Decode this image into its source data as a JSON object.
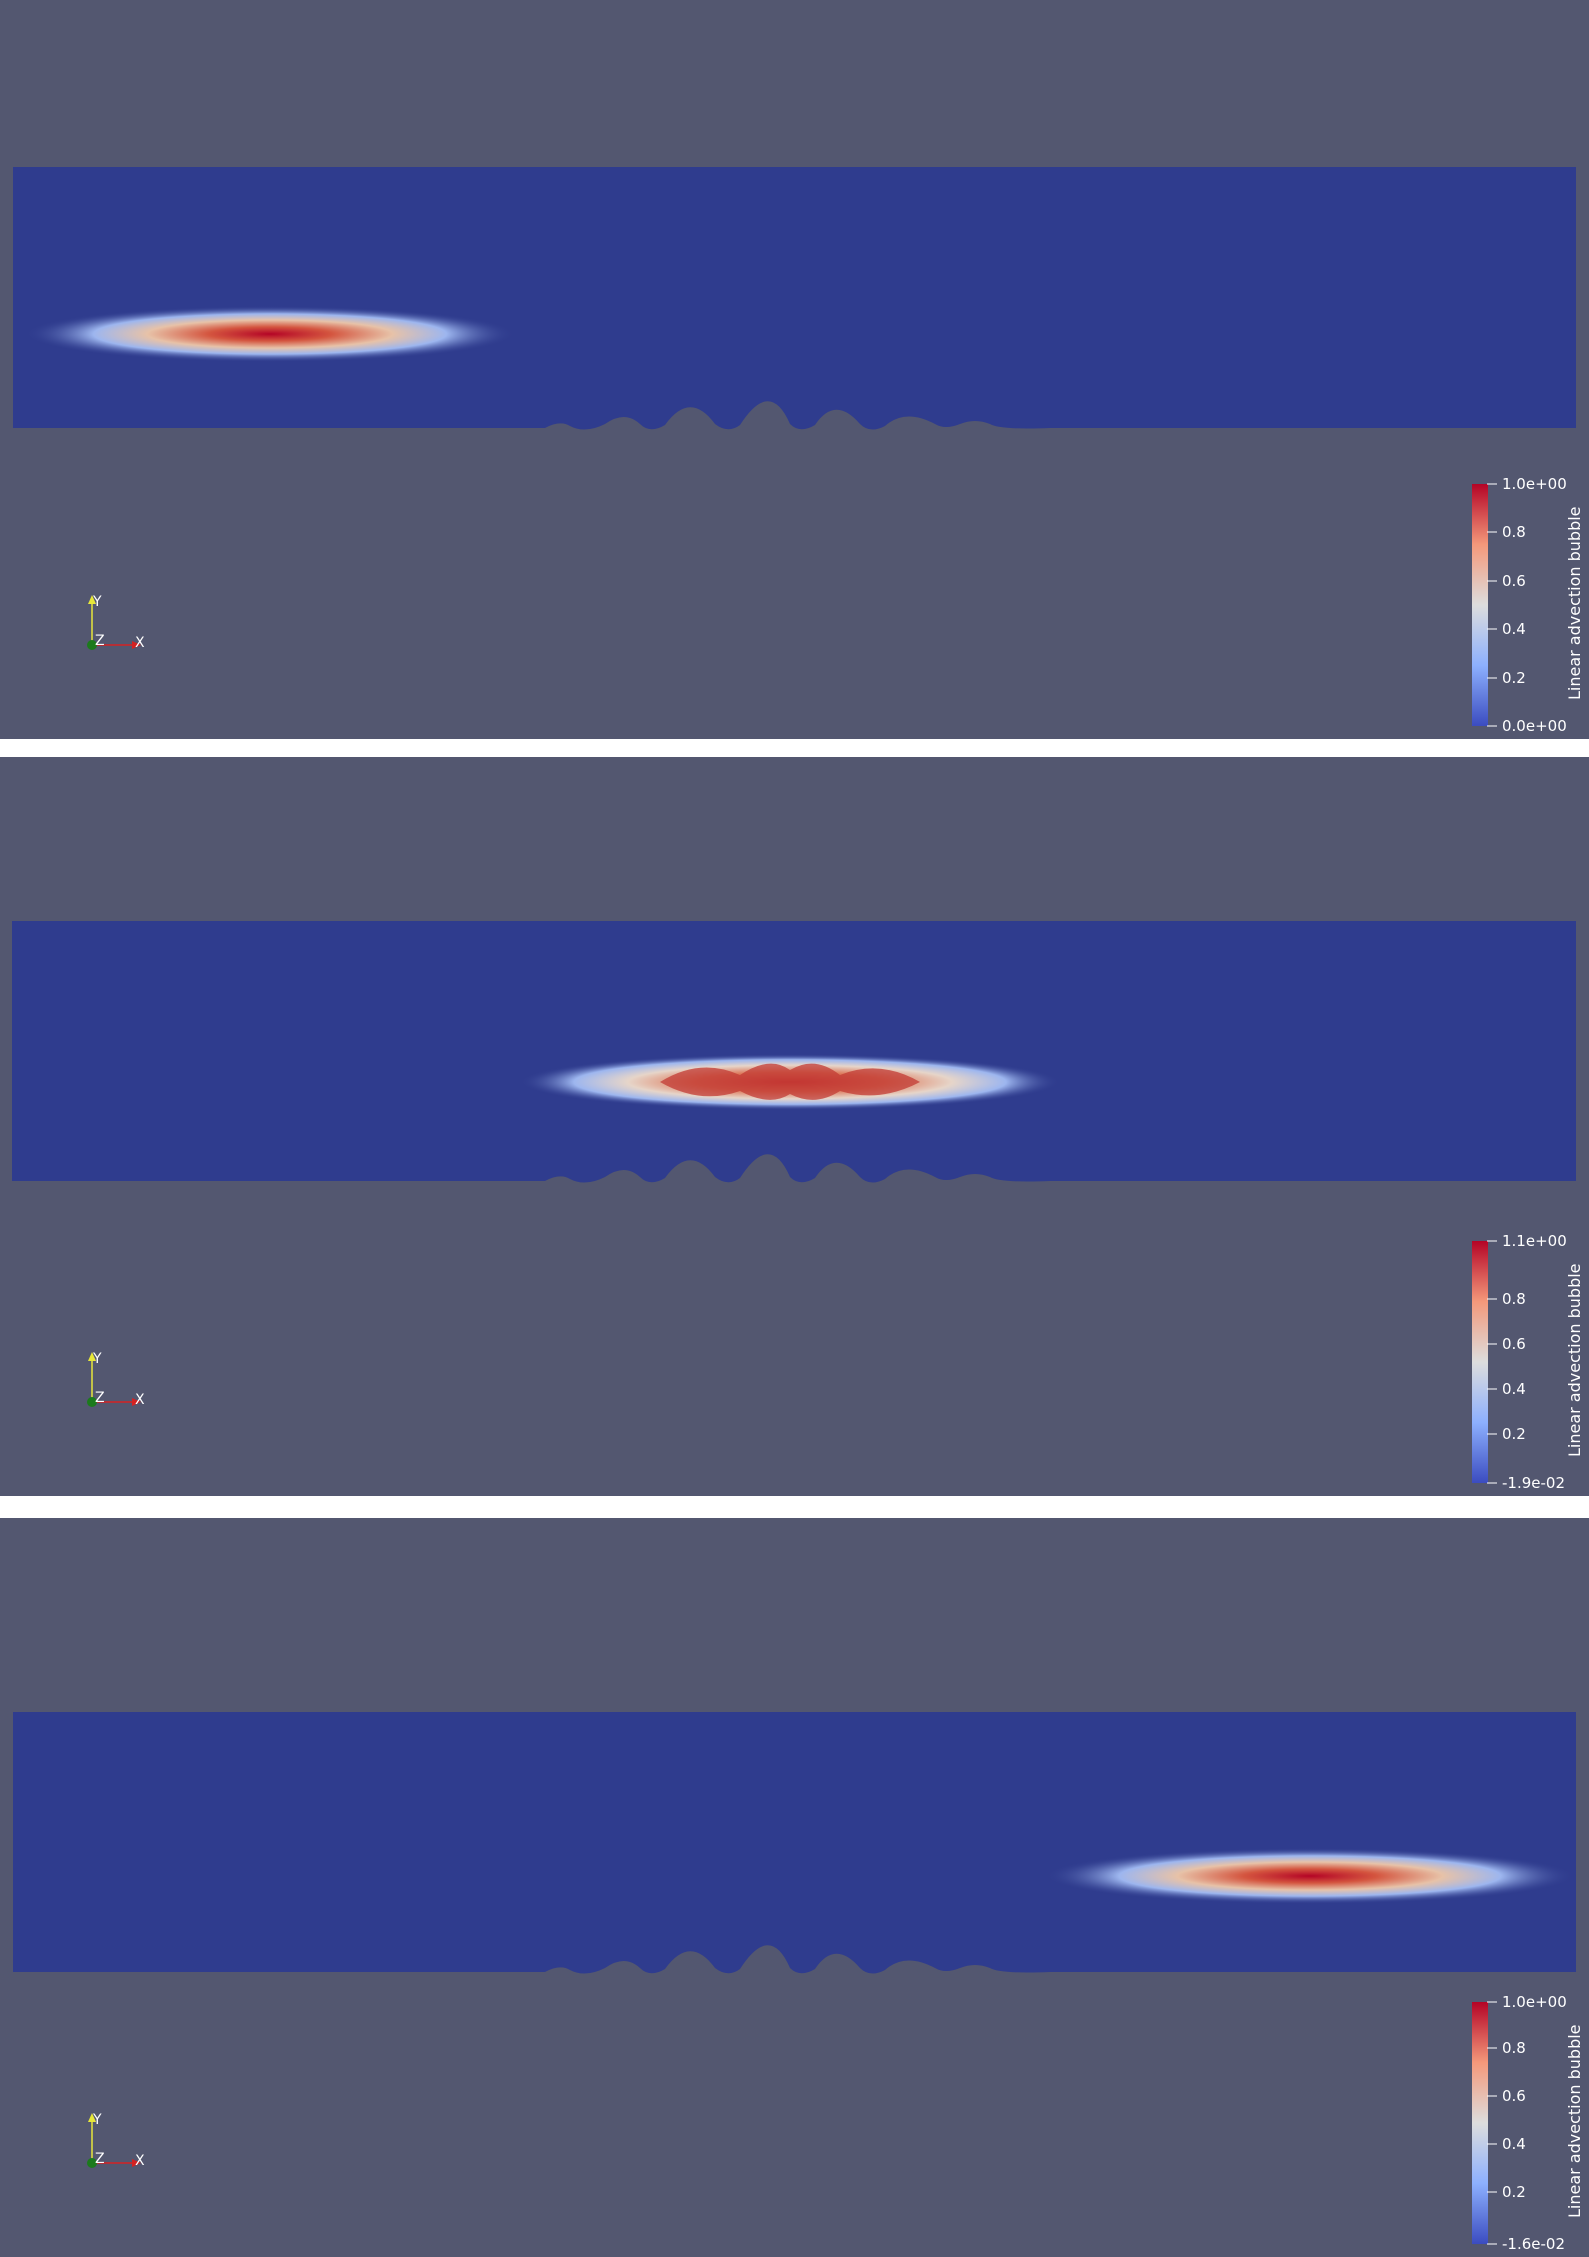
{
  "colors": {
    "background": "#535770",
    "field_low": "#2f3c8e",
    "bubble_mid": "#dcdcdc",
    "bubble_high": "#b40426",
    "separator": "#ffffff",
    "axis_y": "#e7e73a",
    "axis_x": "#d42222",
    "axis_z": "#1c7a1c"
  },
  "panels": [
    {
      "name": "panel-1",
      "colorbar": {
        "title": "Linear advection bubble",
        "ticks": [
          "1.0e+00",
          "0.8",
          "0.6",
          "0.4",
          "0.2",
          "0.0e+00"
        ]
      },
      "orientation_axes": {
        "y": "Y",
        "z": "Z",
        "x": "X"
      }
    },
    {
      "name": "panel-2",
      "colorbar": {
        "title": "Linear advection bubble",
        "ticks": [
          "1.1e+00",
          "0.8",
          "0.6",
          "0.4",
          "0.2",
          "-1.9e-02"
        ]
      },
      "orientation_axes": {
        "y": "Y",
        "z": "Z",
        "x": "X"
      }
    },
    {
      "name": "panel-3",
      "colorbar": {
        "title": "Linear advection bubble",
        "ticks": [
          "1.0e+00",
          "0.8",
          "0.6",
          "0.4",
          "0.2",
          "-1.6e-02"
        ]
      },
      "orientation_axes": {
        "y": "Y",
        "z": "Z",
        "x": "X"
      }
    }
  ]
}
